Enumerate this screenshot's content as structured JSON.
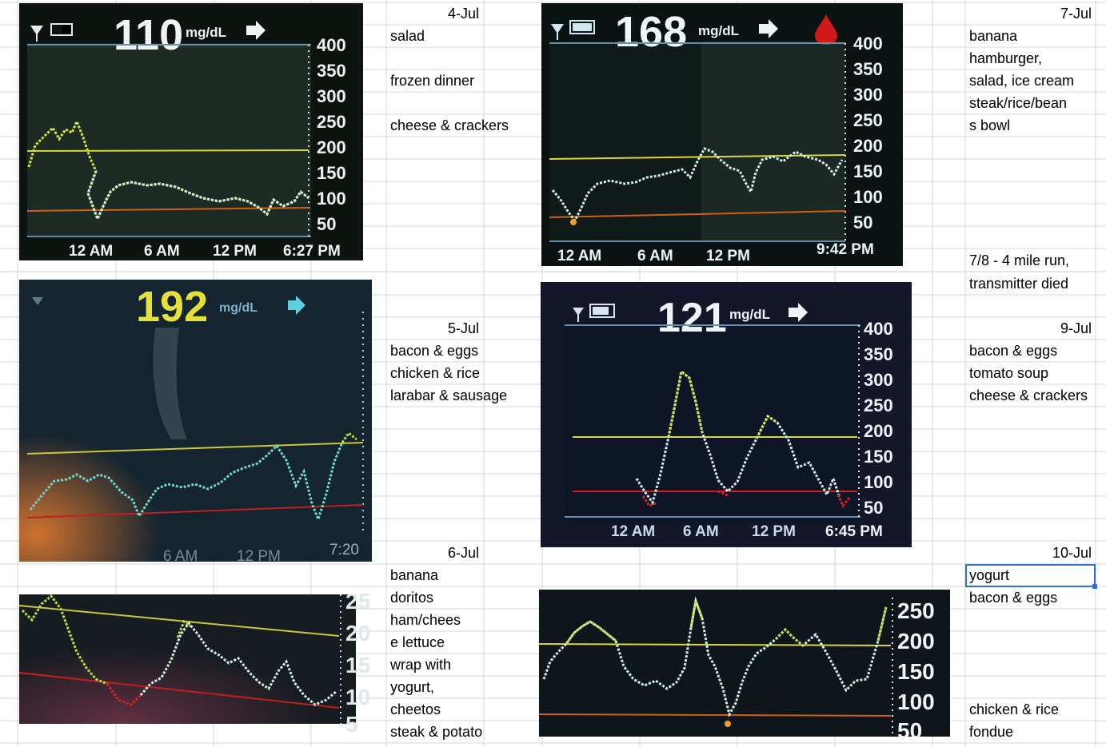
{
  "colors": {
    "gridline": "#d4d4d4",
    "cgm_bg": "#121a18",
    "trace": "#bfeef0",
    "high_line": "#d9d63a",
    "low_line": "#d02020",
    "text_white": "#f2f2f2",
    "selection": "#2f6fd1"
  },
  "columns": [
    {
      "date": "4-Jul",
      "entries": [
        "salad",
        "",
        "frozen dinner",
        "",
        "cheese & crackers"
      ]
    },
    {
      "date": "5-Jul",
      "entries": [
        "bacon & eggs",
        "chicken & rice",
        "larabar & sausage"
      ]
    },
    {
      "date": "6-Jul",
      "entries": [
        "banana",
        "doritos",
        "ham/chees",
        "e lettuce",
        "wrap with",
        "yogurt,",
        "cheetos",
        "steak & potato"
      ]
    },
    {
      "date": "7-Jul",
      "entries": [
        "banana",
        "hamburger,",
        "salad, ice cream",
        "steak/rice/bean",
        "s bowl"
      ]
    },
    {
      "note1": "7/8 - 4 mile run,",
      "note2": "transmitter died"
    },
    {
      "date": "9-Jul",
      "entries": [
        "bacon & eggs",
        "tomato soup",
        "cheese & crackers"
      ]
    },
    {
      "date": "10-Jul",
      "entries": [
        "yogurt",
        "bacon & eggs",
        "",
        "",
        "",
        "chicken & rice",
        "fondue"
      ]
    }
  ],
  "screens": [
    {
      "reading": "110",
      "unit": "mg/dL",
      "time": "6:27 PM",
      "xticks": [
        "12 AM",
        "6 AM",
        "12 PM"
      ],
      "yticks": [
        "400",
        "350",
        "300",
        "250",
        "200",
        "150",
        "100",
        "50"
      ]
    },
    {
      "reading": "168",
      "unit": "mg/dL",
      "time": "9:42 PM",
      "xticks": [
        "12 AM",
        "6 AM",
        "12 PM"
      ],
      "yticks": [
        "400",
        "350",
        "300",
        "250",
        "200",
        "150",
        "100",
        "50"
      ]
    },
    {
      "reading": "192",
      "unit": "mg/dL",
      "time": "7:20",
      "xticks": [
        "6 AM",
        "12 PM"
      ],
      "yticks": []
    },
    {
      "reading": "121",
      "unit": "mg/dL",
      "time": "6:45 PM",
      "xticks": [
        "12 AM",
        "6 AM",
        "12 PM"
      ],
      "yticks": [
        "400",
        "350",
        "300",
        "250",
        "200",
        "150",
        "100",
        "50"
      ]
    },
    {
      "reading": "",
      "unit": "",
      "time": "",
      "xticks": [],
      "yticks": [
        "25",
        "20",
        "15",
        "10",
        "5"
      ]
    },
    {
      "reading": "",
      "unit": "",
      "time": "",
      "xticks": [],
      "yticks": [
        "250",
        "200",
        "150",
        "100",
        "50"
      ]
    }
  ]
}
